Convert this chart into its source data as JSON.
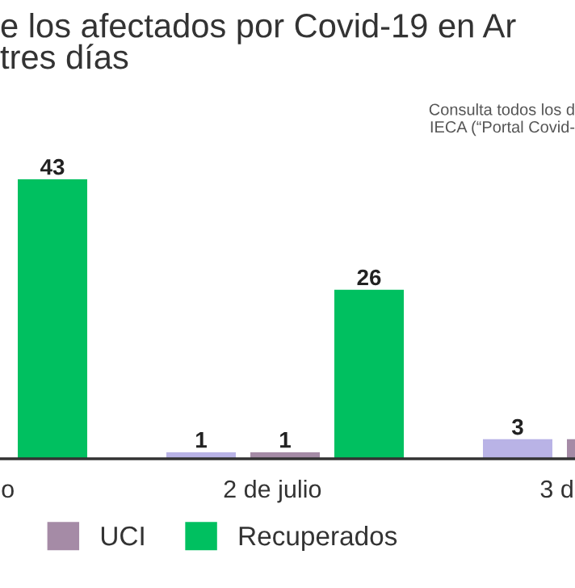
{
  "chart_data": {
    "type": "bar",
    "title": "e los afectados por Covid-19 en Ar\ntres días",
    "annotations": [
      "Consulta todos los d\nIECA (“Portal Covid-"
    ],
    "categories": [
      "o",
      "2 de julio",
      "3 d"
    ],
    "series": [
      {
        "color": "#b9b3e6",
        "values": [
          null,
          1,
          3
        ],
        "value_labels": [
          null,
          "1",
          "3"
        ]
      },
      {
        "name": "UCI",
        "color": "#a58ba6",
        "values": [
          null,
          1,
          3
        ],
        "value_labels": [
          null,
          "1",
          null
        ]
      },
      {
        "name": "Recuperados",
        "color": "#00c060",
        "values": [
          43,
          26,
          null
        ],
        "value_labels": [
          "43",
          "26",
          null
        ]
      }
    ],
    "legend": "bottom"
  }
}
